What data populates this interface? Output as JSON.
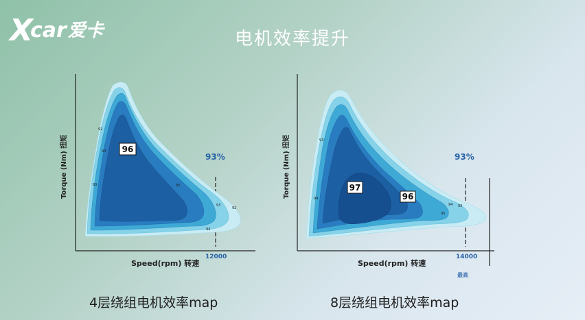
{
  "brand": {
    "logo_x": "X",
    "logo_word": "car",
    "logo_cn": "爱卡"
  },
  "title": "电机效率提升",
  "left_map": {
    "caption": "4层绕组电机效率map",
    "ylabel": "Torque (Nm) 扭矩",
    "xlabel": "Speed(rpm) 转速",
    "tick": "12000",
    "overall_efficiency": "93%",
    "peak_label": "96",
    "contour_labels": [
      "92",
      "94",
      "93",
      "95",
      "93",
      "92",
      "94"
    ]
  },
  "right_map": {
    "caption": "8层绕组电机效率map",
    "ylabel": "Torque (Nm) 扭矩",
    "xlabel": "Speed(rpm) 转速",
    "tick": "14000",
    "overall_efficiency": "93%",
    "peak_label": "97",
    "second_label": "96",
    "contour_labels": [
      "93",
      "94",
      "94",
      "93",
      "95"
    ],
    "bottom_note": "最高"
  },
  "colors": {
    "zone_outer": "#c9ecf4",
    "zone_2": "#86d2e8",
    "zone_3": "#3fa9d6",
    "zone_4": "#2a7cc0",
    "zone_5": "#1d5fa3",
    "zone_core": "#154f90",
    "accent": "#2a64a8"
  }
}
